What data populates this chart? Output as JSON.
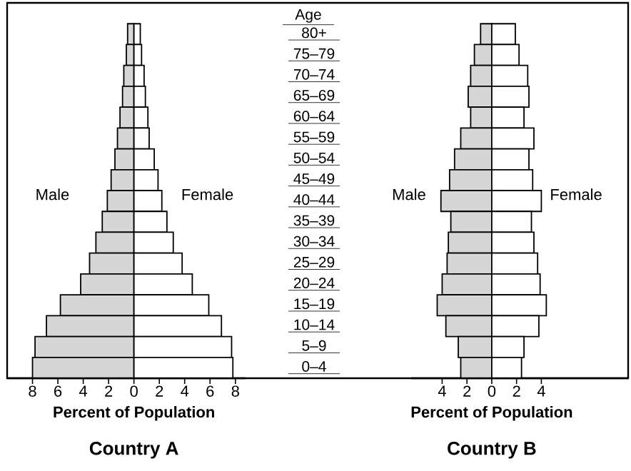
{
  "chart_data": [
    {
      "type": "bar",
      "orientation": "horizontal",
      "stacked": true,
      "title": "Country A",
      "xlabel": "Percent of Population",
      "ylabel": "Age",
      "categories": [
        "80+",
        "75–79",
        "70–74",
        "65–69",
        "60–64",
        "55–59",
        "50–54",
        "45–49",
        "40–44",
        "35–39",
        "30–34",
        "25–29",
        "20–24",
        "15–19",
        "10–14",
        "5–9",
        "0–4"
      ],
      "series": [
        {
          "name": "Male",
          "color": "#d6d6d6",
          "values": [
            -0.5,
            -0.6,
            -0.8,
            -0.9,
            -1.1,
            -1.3,
            -1.5,
            -1.8,
            -2.1,
            -2.5,
            -3.0,
            -3.5,
            -4.2,
            -5.8,
            -6.9,
            -7.8,
            -8.0
          ]
        },
        {
          "name": "Female",
          "color": "#ffffff",
          "values": [
            0.5,
            0.6,
            0.8,
            0.9,
            1.1,
            1.2,
            1.6,
            1.9,
            2.2,
            2.6,
            3.1,
            3.8,
            4.6,
            5.9,
            6.9,
            7.7,
            7.8
          ]
        }
      ],
      "xlim": [
        -10,
        8.8
      ],
      "xticks": [
        {
          "value": -8,
          "label": "8"
        },
        {
          "value": -6,
          "label": "6"
        },
        {
          "value": -4,
          "label": "4"
        },
        {
          "value": -2,
          "label": "2"
        },
        0,
        2,
        4,
        6,
        8
      ]
    },
    {
      "type": "bar",
      "orientation": "horizontal",
      "stacked": true,
      "title": "Country B",
      "xlabel": "Percent of Population",
      "categories": [
        null,
        null,
        null,
        null,
        null,
        null,
        null,
        null,
        null,
        null,
        null,
        null,
        null,
        null,
        null,
        null,
        null
      ],
      "series": [
        {
          "name": "Male",
          "color": "#d6d6d6",
          "values": [
            -0.9,
            -1.4,
            -1.7,
            -1.9,
            -1.7,
            -2.5,
            -3.0,
            -3.4,
            -4.1,
            -3.3,
            -3.5,
            -3.6,
            -4.0,
            -4.4,
            -3.7,
            -2.7,
            -2.5
          ]
        },
        {
          "name": "Female",
          "color": "#ffffff",
          "values": [
            1.9,
            2.2,
            2.9,
            3.0,
            2.6,
            3.4,
            3.0,
            3.3,
            4.0,
            3.2,
            3.4,
            3.7,
            3.9,
            4.4,
            3.8,
            2.6,
            2.4
          ]
        }
      ],
      "xlim": [
        -6.5,
        11
      ],
      "xticks": [
        {
          "value": -4,
          "label": "4"
        },
        {
          "value": -2,
          "label": "2"
        },
        0,
        2,
        4
      ]
    }
  ]
}
